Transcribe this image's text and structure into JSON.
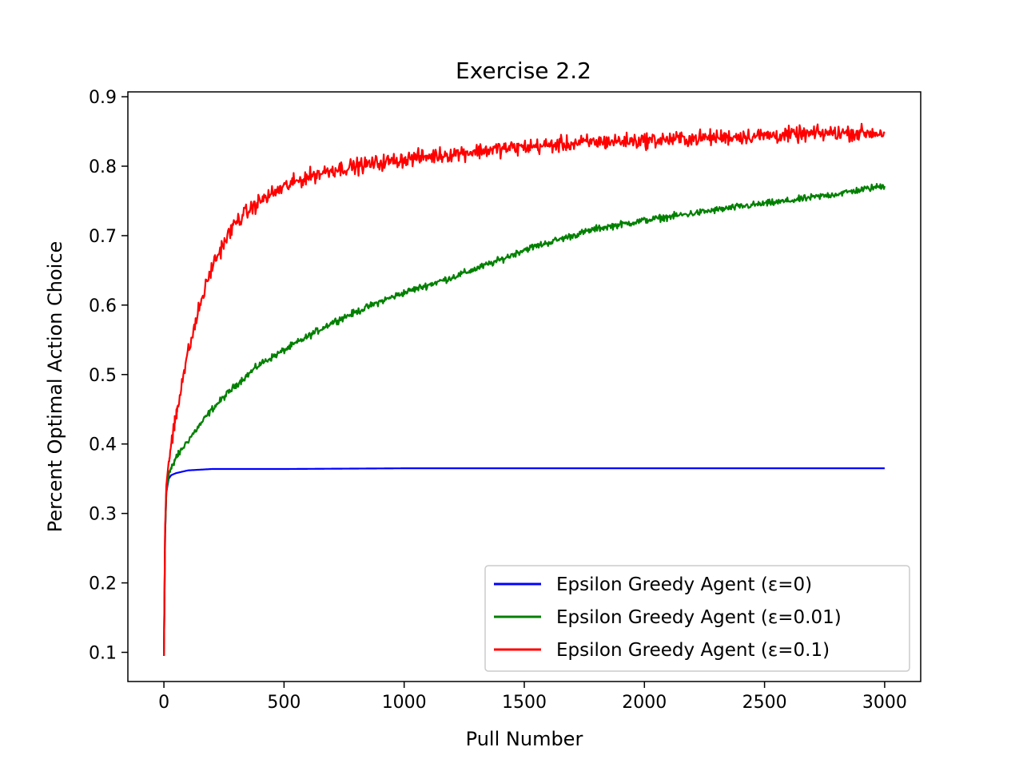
{
  "chart_data": {
    "type": "line",
    "title": "Exercise 2.2",
    "xlabel": "Pull Number",
    "ylabel": "Percent Optimal Action Choice",
    "xlim": [
      -150,
      3150
    ],
    "ylim": [
      0.058,
      0.907
    ],
    "xticks": [
      0,
      500,
      1000,
      1500,
      2000,
      2500,
      3000
    ],
    "xtick_labels": [
      "0",
      "500",
      "1000",
      "1500",
      "2000",
      "2500",
      "3000"
    ],
    "yticks": [
      0.1,
      0.2,
      0.3,
      0.4,
      0.5,
      0.6,
      0.7,
      0.8,
      0.9
    ],
    "ytick_labels": [
      "0.1",
      "0.2",
      "0.3",
      "0.4",
      "0.5",
      "0.6",
      "0.7",
      "0.8",
      "0.9"
    ],
    "grid": false,
    "legend_position": "lower-right",
    "series": [
      {
        "name": "Epsilon Greedy Agent (ε=0)",
        "color": "#0000ff",
        "noise": 0.0,
        "x": [
          0,
          5,
          10,
          20,
          30,
          50,
          100,
          200,
          500,
          1000,
          2000,
          3000
        ],
        "values": [
          0.095,
          0.27,
          0.33,
          0.35,
          0.355,
          0.358,
          0.362,
          0.364,
          0.364,
          0.365,
          0.365,
          0.365
        ]
      },
      {
        "name": "Epsilon Greedy Agent (ε=0.01)",
        "color": "#008000",
        "noise": 0.003,
        "x": [
          0,
          5,
          10,
          20,
          30,
          50,
          100,
          200,
          300,
          400,
          500,
          600,
          700,
          800,
          900,
          1000,
          1200,
          1400,
          1500,
          1600,
          1800,
          2000,
          2200,
          2400,
          2600,
          2800,
          3000
        ],
        "values": [
          0.095,
          0.27,
          0.33,
          0.355,
          0.365,
          0.38,
          0.405,
          0.45,
          0.485,
          0.515,
          0.535,
          0.555,
          0.575,
          0.59,
          0.605,
          0.618,
          0.64,
          0.665,
          0.68,
          0.69,
          0.71,
          0.722,
          0.732,
          0.742,
          0.75,
          0.76,
          0.772
        ]
      },
      {
        "name": "Epsilon Greedy Agent (ε=0.1)",
        "color": "#ff0000",
        "noise": 0.007,
        "x": [
          0,
          5,
          10,
          20,
          30,
          50,
          75,
          100,
          150,
          200,
          250,
          300,
          400,
          500,
          600,
          700,
          800,
          1000,
          1200,
          1400,
          1600,
          1800,
          2000,
          2200,
          2400,
          2600,
          2800,
          3000
        ],
        "values": [
          0.095,
          0.28,
          0.34,
          0.375,
          0.4,
          0.44,
          0.49,
          0.53,
          0.6,
          0.655,
          0.69,
          0.72,
          0.75,
          0.77,
          0.785,
          0.795,
          0.8,
          0.81,
          0.818,
          0.825,
          0.83,
          0.835,
          0.837,
          0.84,
          0.843,
          0.845,
          0.848,
          0.848
        ]
      }
    ]
  }
}
